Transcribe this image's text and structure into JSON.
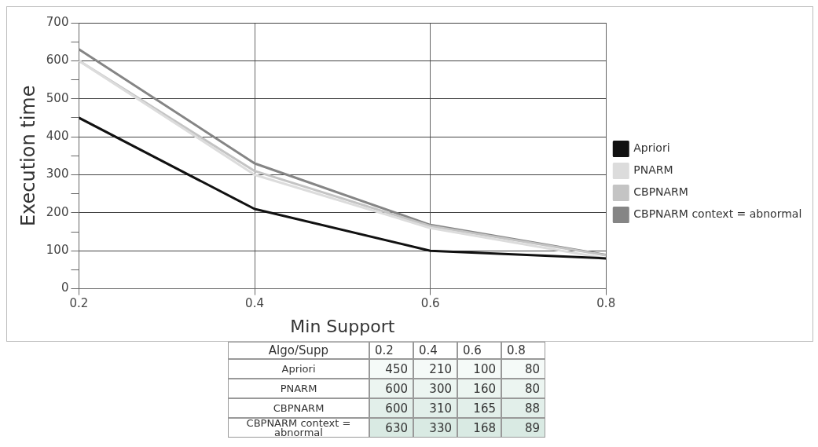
{
  "chart_data": [
    {
      "type": "line",
      "xlabel": "Min Support",
      "ylabel": "Execution time",
      "x": [
        0.2,
        0.4,
        0.6,
        0.8
      ],
      "xlim": [
        0.2,
        0.8
      ],
      "xticks": [
        0.2,
        0.4,
        0.6,
        0.8
      ],
      "ylim": [
        0,
        700
      ],
      "yticks": [
        0,
        {
          "value": 50,
          "label": null
        },
        100,
        {
          "value": 150,
          "label": null
        },
        200,
        {
          "value": 250,
          "label": null
        },
        300,
        {
          "value": 350,
          "label": null
        },
        400,
        {
          "value": 450,
          "label": null
        },
        500,
        {
          "value": 550,
          "label": null
        },
        600,
        {
          "value": 650,
          "label": null
        },
        700
      ],
      "series": [
        {
          "name": "Apriori",
          "color": "#111111",
          "values": [
            450,
            210,
            100,
            80
          ]
        },
        {
          "name": "PNARM",
          "color": "#dcdcdc",
          "values": [
            600,
            300,
            160,
            80
          ]
        },
        {
          "name": "CBPNARM",
          "color": "#c4c4c4",
          "values": [
            600,
            310,
            165,
            88
          ]
        },
        {
          "name": "CBPNARM context = abnormal",
          "color": "#858585",
          "values": [
            630,
            330,
            168,
            89
          ]
        }
      ],
      "grid": true,
      "legend": "right",
      "marker": "none",
      "line_style": "solid"
    },
    {
      "type": "heatmap",
      "title": "Algo/Supp",
      "categories": [
        "0.2",
        "0.4",
        "0.6",
        "0.8"
      ],
      "y_categories": [
        "Apriori",
        "PNARM",
        "CBPNARM",
        "CBPNARM context = abnormal"
      ],
      "cells": [
        [
          450,
          210,
          100,
          80
        ],
        [
          600,
          300,
          160,
          80
        ],
        [
          600,
          310,
          165,
          88
        ],
        [
          630,
          330,
          168,
          89
        ]
      ],
      "data_labels": true
    }
  ]
}
